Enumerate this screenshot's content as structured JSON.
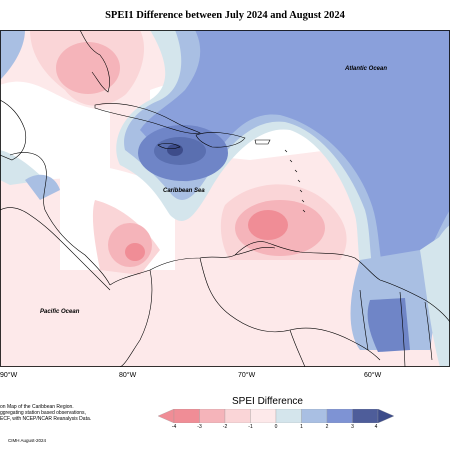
{
  "title": "SPEI1 Difference between July 2024 and August 2024",
  "labels": {
    "atlantic": "Atlantic Ocean",
    "caribbean": "Caribbean Sea",
    "pacific": "Pacific Ocean"
  },
  "longitude_labels": [
    "90°W",
    "80°W",
    "70°W",
    "60°W"
  ],
  "notes": [
    "on Map of the Caribbean Region.",
    "ggregating station based observations,",
    "ECF, with NCEP/NCAR Reanalysis Data."
  ],
  "credit": "CIMH August-2024",
  "legend": {
    "title": "SPEI Difference",
    "ticks": [
      "-4",
      "-3",
      "-2",
      "-1",
      "0",
      "1",
      "2",
      "3",
      "4"
    ],
    "colors": [
      "#f08d96",
      "#f5b4ba",
      "#fad5d7",
      "#fde9ea",
      "#ffffff",
      "#d4e5ec",
      "#a9bfe3",
      "#7e93d4",
      "#4e5d9a"
    ]
  }
}
